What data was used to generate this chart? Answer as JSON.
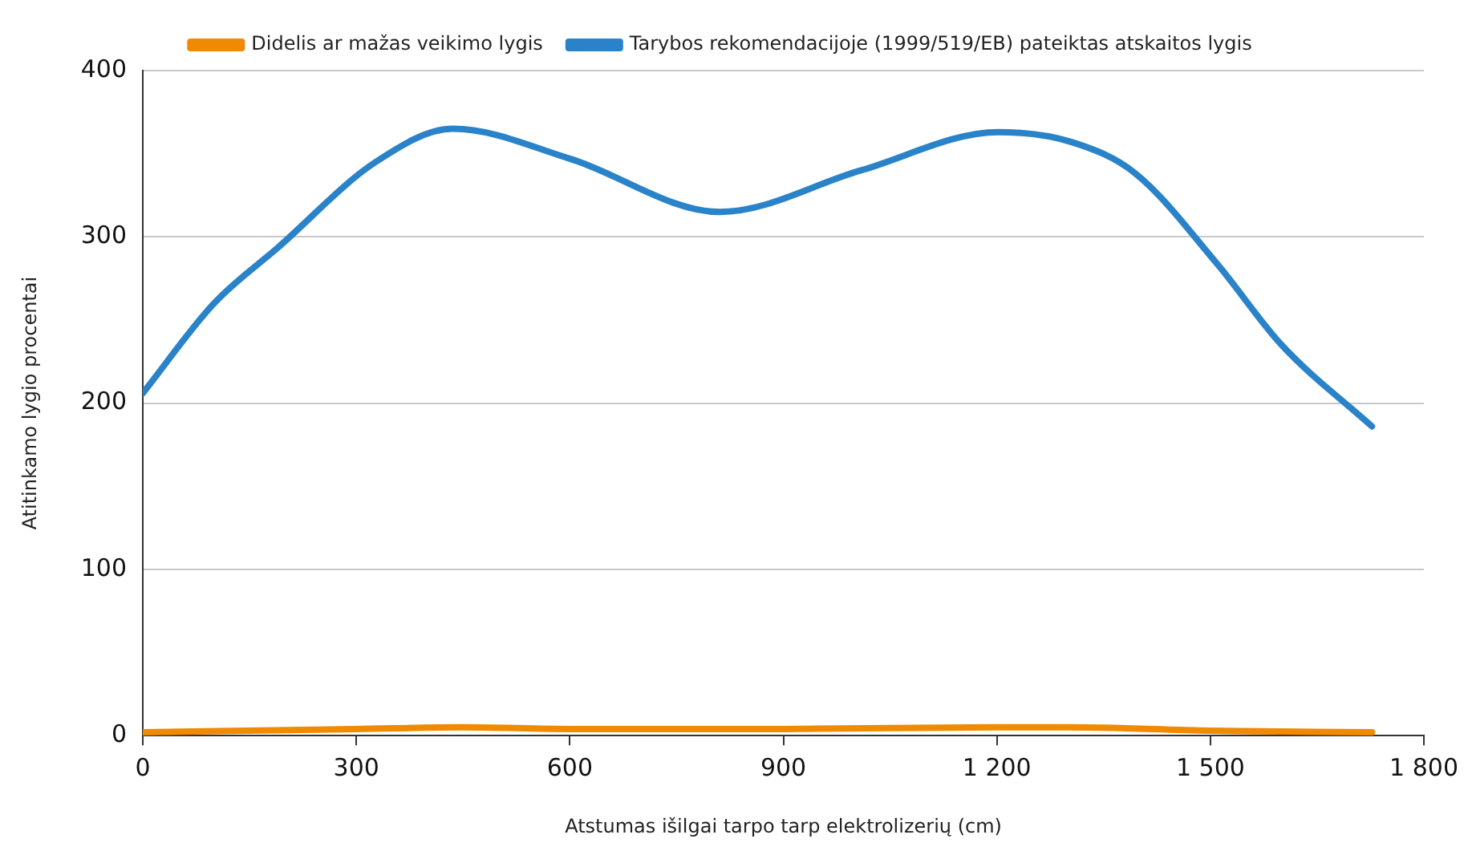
{
  "chart_data": {
    "type": "line",
    "xlabel": "Atstumas išilgai tarpo tarp elektrolizerių (cm)",
    "ylabel": "Atitinkamo lygio procentai",
    "xlim": [
      0,
      1800
    ],
    "xticks": [
      0,
      300,
      600,
      {
        "value": 900,
        "label": "900"
      },
      {
        "value": 1200,
        "label": "1 200"
      },
      {
        "value": 1500,
        "label": "1 500"
      },
      {
        "value": 1800,
        "label": "1 800"
      }
    ],
    "ylim": [
      0,
      400
    ],
    "yticks": [
      0,
      100,
      200,
      300,
      400
    ],
    "grid": "y",
    "legend": "top",
    "marker": "none",
    "line_style": "solid",
    "series": [
      {
        "name": "Didelis ar mažas veikimo lygis",
        "color": "#f08a00",
        "x": [
          0,
          300,
          450,
          600,
          900,
          1200,
          1300,
          1500,
          1727
        ],
        "values": [
          2,
          4,
          5,
          4,
          4,
          5,
          5,
          3,
          2
        ]
      },
      {
        "name": "Tarybos rekomendacijoje (1999/519/EB) pateiktas atskaitos lygis",
        "color": "#2a83c9",
        "x": [
          0,
          100,
          191,
          327,
          436,
          600,
          811,
          1009,
          1202,
          1305,
          1395,
          1509,
          1600,
          1727
        ],
        "values": [
          206,
          260,
          294,
          345,
          365,
          347,
          315,
          340,
          363,
          357,
          338,
          284,
          235,
          186
        ]
      }
    ]
  }
}
